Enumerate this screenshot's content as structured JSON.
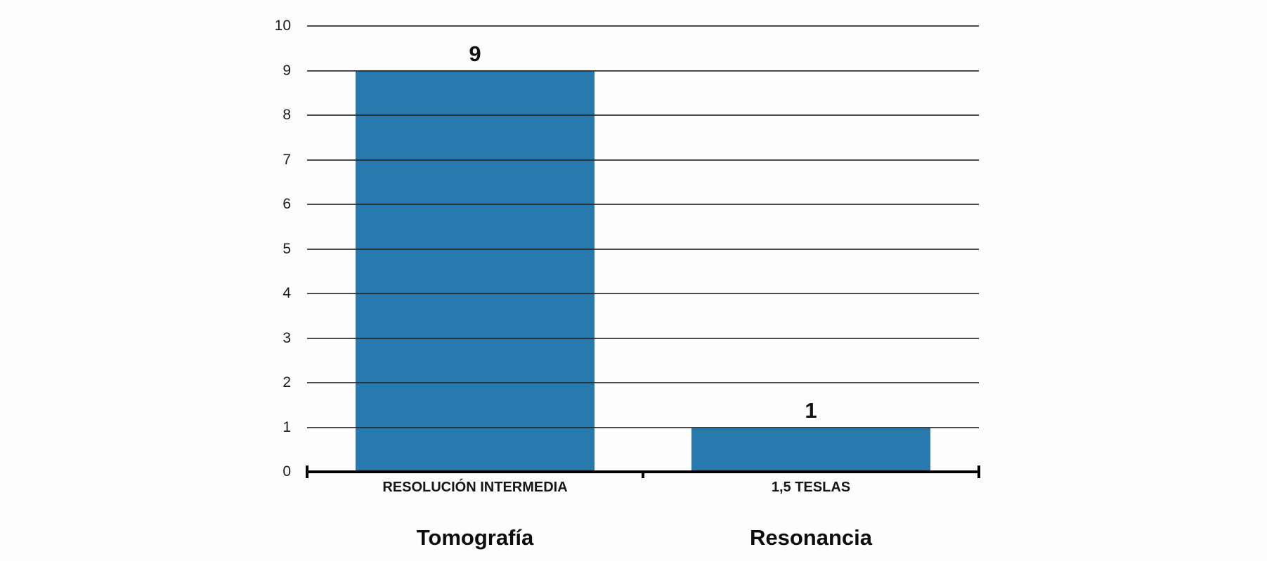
{
  "chart_data": {
    "type": "bar",
    "categories": [
      "RESOLUCIÓN INTERMEDIA",
      "1,5 TESLAS"
    ],
    "group_labels": [
      "Tomografía",
      "Resonancia"
    ],
    "values": [
      9,
      1
    ],
    "value_labels": [
      "9",
      "1"
    ],
    "title": "",
    "xlabel": "",
    "ylabel": "",
    "ylim": [
      0,
      10
    ],
    "yticks": [
      0,
      1,
      2,
      3,
      4,
      5,
      6,
      7,
      8,
      9,
      10
    ],
    "grid": true,
    "legend": "none",
    "bar_color": "#2879ad",
    "gridline_color": "rgba(35,35,35,0.82)",
    "axis_color": "#000000",
    "background_color": "#fdfdfd"
  }
}
